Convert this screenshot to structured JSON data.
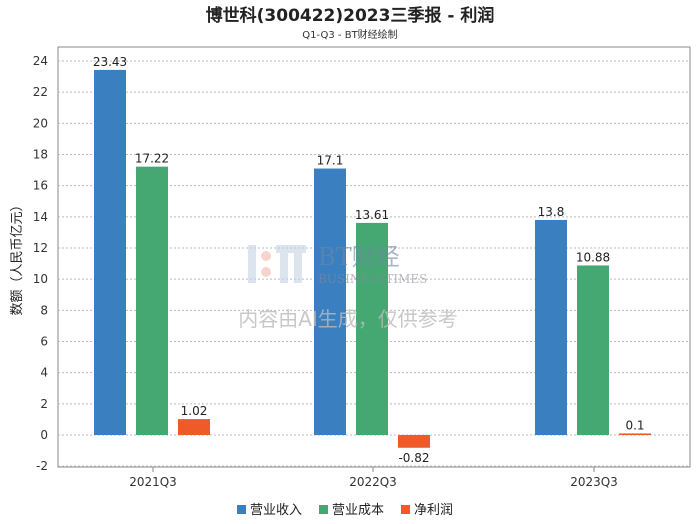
{
  "chart_data": {
    "type": "bar",
    "title": "博世科(300422)2023三季报 - 利润",
    "subtitle": "Q1-Q3 - BT财经绘制",
    "xlabel": "",
    "ylabel": "数额（人民币亿元）",
    "ylim": [
      -2,
      24
    ],
    "yticks": [
      -2,
      0,
      2,
      4,
      6,
      8,
      10,
      12,
      14,
      16,
      18,
      20,
      22,
      24
    ],
    "categories": [
      "2021Q3",
      "2022Q3",
      "2023Q3"
    ],
    "series": [
      {
        "name": "营业收入",
        "color": "#3a7fbf",
        "values": [
          23.43,
          17.1,
          13.8
        ],
        "labels": [
          "23.43",
          "17.1",
          "13.8"
        ]
      },
      {
        "name": "营业成本",
        "color": "#45a873",
        "values": [
          17.22,
          13.61,
          10.88
        ],
        "labels": [
          "17.22",
          "13.61",
          "10.88"
        ]
      },
      {
        "name": "净利润",
        "color": "#f05a28",
        "values": [
          1.02,
          -0.82,
          0.1
        ],
        "labels": [
          "1.02",
          "-0.82",
          "0.1"
        ]
      }
    ],
    "grid": true,
    "legend": "bottom"
  },
  "watermark": {
    "brand": "BT财经",
    "brand_en": "BUSINESSTIMES",
    "notice": "内容由AI生成，仅供参考"
  }
}
